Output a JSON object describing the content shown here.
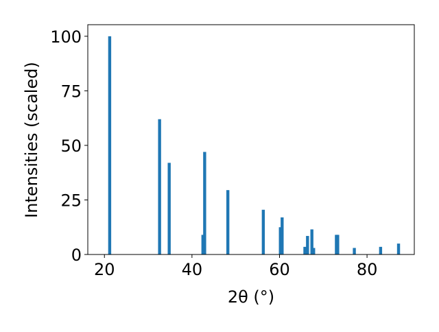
{
  "chart_data": {
    "type": "bar",
    "x_label": "2θ (°)",
    "y_label": "Intensities (scaled)",
    "x": [
      21.2,
      32.6,
      34.8,
      42.5,
      42.9,
      48.2,
      56.3,
      60.2,
      60.6,
      65.8,
      66.4,
      67.4,
      67.8,
      73.0,
      73.3,
      77.1,
      83.1,
      87.2
    ],
    "values": [
      100,
      62,
      42,
      9,
      47,
      29.5,
      20.5,
      12.5,
      17,
      3.5,
      8.5,
      11.5,
      3,
      9,
      9,
      3,
      3.5,
      5
    ],
    "color": "#1f77b4",
    "xlim": [
      16.2,
      90.8
    ],
    "xticks": [
      20,
      40,
      60,
      80
    ],
    "ylim": [
      0,
      105.3
    ],
    "yticks": [
      0,
      25,
      50,
      75,
      100
    ],
    "grid": false
  }
}
